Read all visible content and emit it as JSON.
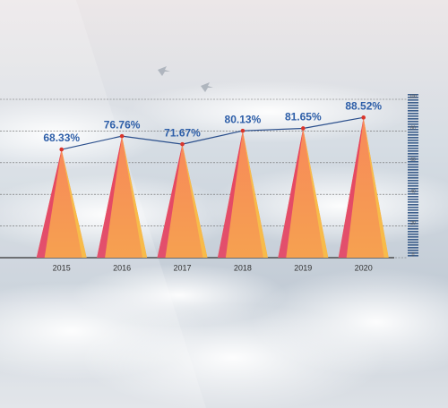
{
  "chart_data": {
    "type": "bar",
    "categories": [
      "2015",
      "2016",
      "2017",
      "2018",
      "2019",
      "2020"
    ],
    "values": [
      68.33,
      76.76,
      71.67,
      80.13,
      81.65,
      88.52
    ],
    "value_labels": [
      "68.33%",
      "76.76%",
      "71.67%",
      "80.13%",
      "81.65%",
      "88.52%"
    ],
    "color": "#f47a55",
    "line_color": "#2b4f8c",
    "point_color": "#d9352b",
    "label_color": "#2d5ea8",
    "ylim": [
      0,
      100
    ],
    "yticks": [
      0,
      20,
      40,
      60,
      80,
      100
    ],
    "grid": true
  }
}
